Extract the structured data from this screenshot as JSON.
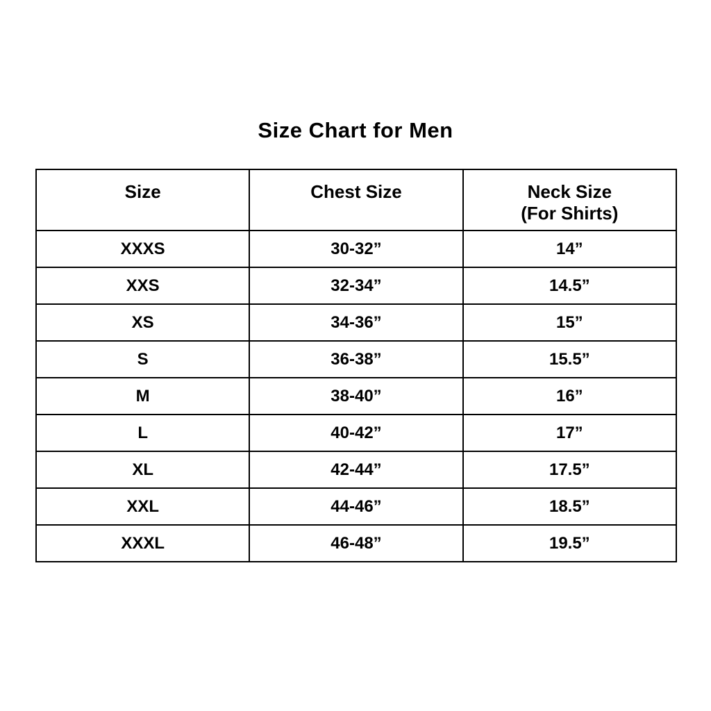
{
  "page_title": "Size Chart for Men",
  "colors": {
    "background": "#ffffff",
    "text": "#000000",
    "border": "#000000"
  },
  "chart_data": {
    "type": "table",
    "title": "Size Chart for Men",
    "columns": {
      "size": "Size",
      "chest": "Chest Size",
      "neck_line1": "Neck Size",
      "neck_line2": "(For Shirts)"
    },
    "rows": [
      {
        "size": "XXXS",
        "chest": "30-32”",
        "neck": "14”"
      },
      {
        "size": "XXS",
        "chest": "32-34”",
        "neck": "14.5”"
      },
      {
        "size": "XS",
        "chest": "34-36”",
        "neck": "15”"
      },
      {
        "size": "S",
        "chest": "36-38”",
        "neck": "15.5”"
      },
      {
        "size": "M",
        "chest": "38-40”",
        "neck": "16”"
      },
      {
        "size": "L",
        "chest": "40-42”",
        "neck": "17”"
      },
      {
        "size": "XL",
        "chest": "42-44”",
        "neck": "17.5”"
      },
      {
        "size": "XXL",
        "chest": "44-46”",
        "neck": "18.5”"
      },
      {
        "size": "XXXL",
        "chest": "46-48”",
        "neck": "19.5”"
      }
    ]
  }
}
